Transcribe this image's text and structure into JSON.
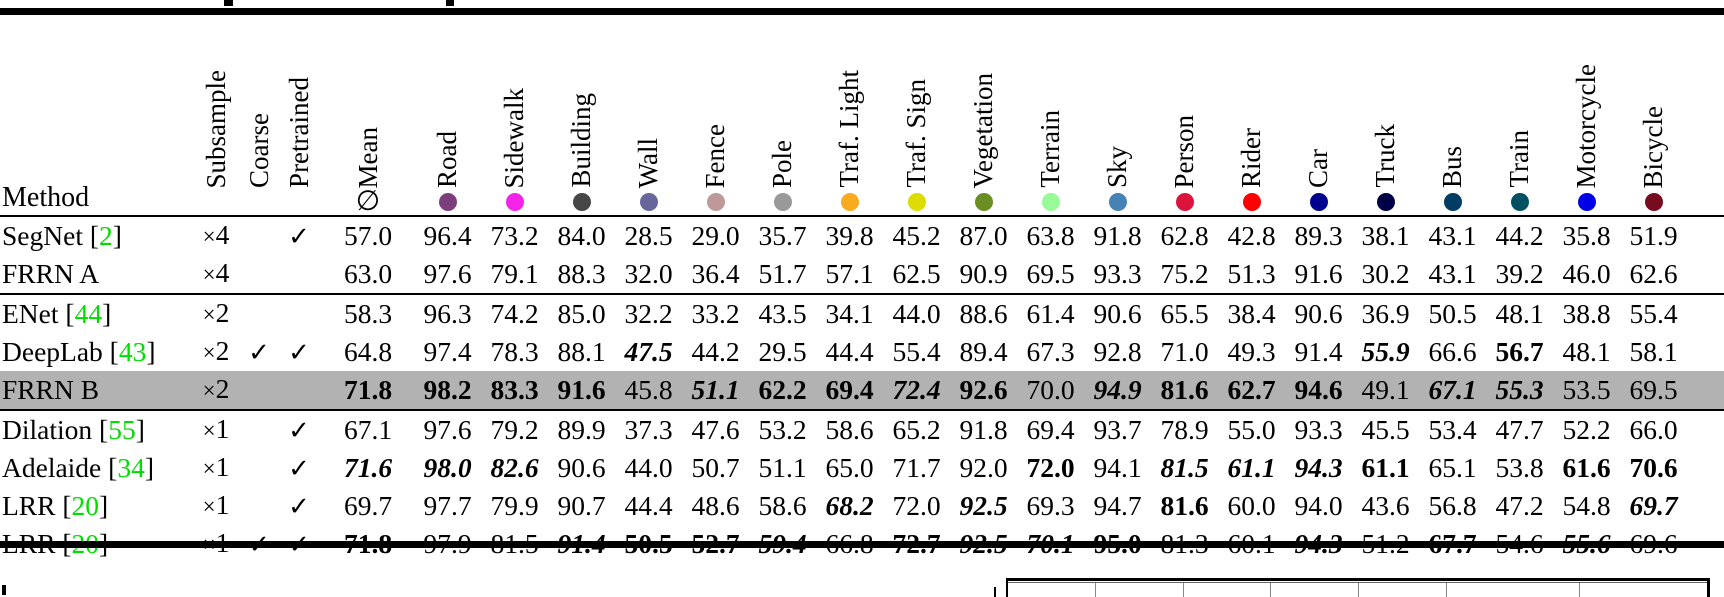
{
  "table": {
    "method_header": "Method",
    "check_glyph": "✓",
    "cite_color": "#00dd00",
    "highlight_color": "#b2b2b2",
    "meta_columns": [
      {
        "label": "Subsample"
      },
      {
        "label": "Coarse"
      },
      {
        "label": "Pretrained"
      }
    ],
    "mean_column": {
      "label": "Mean",
      "symbol": "∅"
    },
    "class_columns": [
      {
        "label": "Road",
        "color": "#7c3f7c"
      },
      {
        "label": "Sidewalk",
        "color": "#f423e8"
      },
      {
        "label": "Building",
        "color": "#464646"
      },
      {
        "label": "Wall",
        "color": "#66669c"
      },
      {
        "label": "Fence",
        "color": "#be9999"
      },
      {
        "label": "Pole",
        "color": "#999999"
      },
      {
        "label": "Traf. Light",
        "color": "#faaa1e"
      },
      {
        "label": "Traf. Sign",
        "color": "#dcdc00"
      },
      {
        "label": "Vegetation",
        "color": "#6b8e23"
      },
      {
        "label": "Terrain",
        "color": "#98fb98"
      },
      {
        "label": "Sky",
        "color": "#4682b4"
      },
      {
        "label": "Person",
        "color": "#dc143c"
      },
      {
        "label": "Rider",
        "color": "#ff0000"
      },
      {
        "label": "Car",
        "color": "#00008e"
      },
      {
        "label": "Truck",
        "color": "#000046"
      },
      {
        "label": "Bus",
        "color": "#003c64"
      },
      {
        "label": "Train",
        "color": "#005064"
      },
      {
        "label": "Motorcycle",
        "color": "#0000e6"
      },
      {
        "label": "Bicycle",
        "color": "#770b20"
      }
    ],
    "rows": [
      {
        "method": "SegNet",
        "cite": "2",
        "subsample": "×4",
        "coarse": false,
        "pretrained": true,
        "highlight": false,
        "group_end": false,
        "mean": [
          "57.0",
          ""
        ],
        "values": [
          [
            "96.4",
            ""
          ],
          [
            "73.2",
            ""
          ],
          [
            "84.0",
            ""
          ],
          [
            "28.5",
            ""
          ],
          [
            "29.0",
            ""
          ],
          [
            "35.7",
            ""
          ],
          [
            "39.8",
            ""
          ],
          [
            "45.2",
            ""
          ],
          [
            "87.0",
            ""
          ],
          [
            "63.8",
            ""
          ],
          [
            "91.8",
            ""
          ],
          [
            "62.8",
            ""
          ],
          [
            "42.8",
            ""
          ],
          [
            "89.3",
            ""
          ],
          [
            "38.1",
            ""
          ],
          [
            "43.1",
            ""
          ],
          [
            "44.2",
            ""
          ],
          [
            "35.8",
            ""
          ],
          [
            "51.9",
            ""
          ]
        ]
      },
      {
        "method": "FRRN A",
        "cite": "",
        "subsample": "×4",
        "coarse": false,
        "pretrained": false,
        "highlight": false,
        "group_end": true,
        "mean": [
          "63.0",
          ""
        ],
        "values": [
          [
            "97.6",
            ""
          ],
          [
            "79.1",
            ""
          ],
          [
            "88.3",
            ""
          ],
          [
            "32.0",
            ""
          ],
          [
            "36.4",
            ""
          ],
          [
            "51.7",
            ""
          ],
          [
            "57.1",
            ""
          ],
          [
            "62.5",
            ""
          ],
          [
            "90.9",
            ""
          ],
          [
            "69.5",
            ""
          ],
          [
            "93.3",
            ""
          ],
          [
            "75.2",
            ""
          ],
          [
            "51.3",
            ""
          ],
          [
            "91.6",
            ""
          ],
          [
            "30.2",
            ""
          ],
          [
            "43.1",
            ""
          ],
          [
            "39.2",
            ""
          ],
          [
            "46.0",
            ""
          ],
          [
            "62.6",
            ""
          ]
        ]
      },
      {
        "method": "ENet",
        "cite": "44",
        "subsample": "×2",
        "coarse": false,
        "pretrained": false,
        "highlight": false,
        "group_end": false,
        "mean": [
          "58.3",
          ""
        ],
        "values": [
          [
            "96.3",
            ""
          ],
          [
            "74.2",
            ""
          ],
          [
            "85.0",
            ""
          ],
          [
            "32.2",
            ""
          ],
          [
            "33.2",
            ""
          ],
          [
            "43.5",
            ""
          ],
          [
            "34.1",
            ""
          ],
          [
            "44.0",
            ""
          ],
          [
            "88.6",
            ""
          ],
          [
            "61.4",
            ""
          ],
          [
            "90.6",
            ""
          ],
          [
            "65.5",
            ""
          ],
          [
            "38.4",
            ""
          ],
          [
            "90.6",
            ""
          ],
          [
            "36.9",
            ""
          ],
          [
            "50.5",
            ""
          ],
          [
            "48.1",
            ""
          ],
          [
            "38.8",
            ""
          ],
          [
            "55.4",
            ""
          ]
        ]
      },
      {
        "method": "DeepLab",
        "cite": "43",
        "subsample": "×2",
        "coarse": true,
        "pretrained": true,
        "highlight": false,
        "group_end": false,
        "mean": [
          "64.8",
          ""
        ],
        "values": [
          [
            "97.4",
            ""
          ],
          [
            "78.3",
            ""
          ],
          [
            "88.1",
            ""
          ],
          [
            "47.5",
            "bi"
          ],
          [
            "44.2",
            ""
          ],
          [
            "29.5",
            ""
          ],
          [
            "44.4",
            ""
          ],
          [
            "55.4",
            ""
          ],
          [
            "89.4",
            ""
          ],
          [
            "67.3",
            ""
          ],
          [
            "92.8",
            ""
          ],
          [
            "71.0",
            ""
          ],
          [
            "49.3",
            ""
          ],
          [
            "91.4",
            ""
          ],
          [
            "55.9",
            "bi"
          ],
          [
            "66.6",
            ""
          ],
          [
            "56.7",
            "b"
          ],
          [
            "48.1",
            ""
          ],
          [
            "58.1",
            ""
          ]
        ]
      },
      {
        "method": "FRRN B",
        "cite": "",
        "subsample": "×2",
        "coarse": false,
        "pretrained": false,
        "highlight": true,
        "group_end": true,
        "mean": [
          "71.8",
          "b"
        ],
        "values": [
          [
            "98.2",
            "b"
          ],
          [
            "83.3",
            "b"
          ],
          [
            "91.6",
            "b"
          ],
          [
            "45.8",
            ""
          ],
          [
            "51.1",
            "bi"
          ],
          [
            "62.2",
            "b"
          ],
          [
            "69.4",
            "b"
          ],
          [
            "72.4",
            "bi"
          ],
          [
            "92.6",
            "b"
          ],
          [
            "70.0",
            ""
          ],
          [
            "94.9",
            "bi"
          ],
          [
            "81.6",
            "b"
          ],
          [
            "62.7",
            "b"
          ],
          [
            "94.6",
            "b"
          ],
          [
            "49.1",
            ""
          ],
          [
            "67.1",
            "bi"
          ],
          [
            "55.3",
            "bi"
          ],
          [
            "53.5",
            ""
          ],
          [
            "69.5",
            ""
          ]
        ]
      },
      {
        "method": "Dilation",
        "cite": "55",
        "subsample": "×1",
        "coarse": false,
        "pretrained": true,
        "highlight": false,
        "group_end": false,
        "mean": [
          "67.1",
          ""
        ],
        "values": [
          [
            "97.6",
            ""
          ],
          [
            "79.2",
            ""
          ],
          [
            "89.9",
            ""
          ],
          [
            "37.3",
            ""
          ],
          [
            "47.6",
            ""
          ],
          [
            "53.2",
            ""
          ],
          [
            "58.6",
            ""
          ],
          [
            "65.2",
            ""
          ],
          [
            "91.8",
            ""
          ],
          [
            "69.4",
            ""
          ],
          [
            "93.7",
            ""
          ],
          [
            "78.9",
            ""
          ],
          [
            "55.0",
            ""
          ],
          [
            "93.3",
            ""
          ],
          [
            "45.5",
            ""
          ],
          [
            "53.4",
            ""
          ],
          [
            "47.7",
            ""
          ],
          [
            "52.2",
            ""
          ],
          [
            "66.0",
            ""
          ]
        ]
      },
      {
        "method": "Adelaide",
        "cite": "34",
        "subsample": "×1",
        "coarse": false,
        "pretrained": true,
        "highlight": false,
        "group_end": false,
        "mean": [
          "71.6",
          "bi"
        ],
        "values": [
          [
            "98.0",
            "bi"
          ],
          [
            "82.6",
            "bi"
          ],
          [
            "90.6",
            ""
          ],
          [
            "44.0",
            ""
          ],
          [
            "50.7",
            ""
          ],
          [
            "51.1",
            ""
          ],
          [
            "65.0",
            ""
          ],
          [
            "71.7",
            ""
          ],
          [
            "92.0",
            ""
          ],
          [
            "72.0",
            "b"
          ],
          [
            "94.1",
            ""
          ],
          [
            "81.5",
            "bi"
          ],
          [
            "61.1",
            "bi"
          ],
          [
            "94.3",
            "bi"
          ],
          [
            "61.1",
            "b"
          ],
          [
            "65.1",
            ""
          ],
          [
            "53.8",
            ""
          ],
          [
            "61.6",
            "b"
          ],
          [
            "70.6",
            "b"
          ]
        ]
      },
      {
        "method": "LRR",
        "cite": "20",
        "subsample": "×1",
        "coarse": false,
        "pretrained": true,
        "highlight": false,
        "group_end": false,
        "mean": [
          "69.7",
          ""
        ],
        "values": [
          [
            "97.7",
            ""
          ],
          [
            "79.9",
            ""
          ],
          [
            "90.7",
            ""
          ],
          [
            "44.4",
            ""
          ],
          [
            "48.6",
            ""
          ],
          [
            "58.6",
            ""
          ],
          [
            "68.2",
            "bi"
          ],
          [
            "72.0",
            ""
          ],
          [
            "92.5",
            "bi"
          ],
          [
            "69.3",
            ""
          ],
          [
            "94.7",
            ""
          ],
          [
            "81.6",
            "b"
          ],
          [
            "60.0",
            ""
          ],
          [
            "94.0",
            ""
          ],
          [
            "43.6",
            ""
          ],
          [
            "56.8",
            ""
          ],
          [
            "47.2",
            ""
          ],
          [
            "54.8",
            ""
          ],
          [
            "69.7",
            "bi"
          ]
        ]
      },
      {
        "method": "LRR",
        "cite": "20",
        "subsample": "×1",
        "coarse": true,
        "pretrained": true,
        "highlight": false,
        "group_end": false,
        "mean": [
          "71.8",
          "b"
        ],
        "values": [
          [
            "97.9",
            ""
          ],
          [
            "81.5",
            ""
          ],
          [
            "91.4",
            "bi"
          ],
          [
            "50.5",
            "b"
          ],
          [
            "52.7",
            "b"
          ],
          [
            "59.4",
            "bi"
          ],
          [
            "66.8",
            ""
          ],
          [
            "72.7",
            "b"
          ],
          [
            "92.5",
            "bi"
          ],
          [
            "70.1",
            "bi"
          ],
          [
            "95.0",
            "b"
          ],
          [
            "81.3",
            ""
          ],
          [
            "60.1",
            ""
          ],
          [
            "94.3",
            "bi"
          ],
          [
            "51.2",
            ""
          ],
          [
            "67.7",
            "b"
          ],
          [
            "54.6",
            ""
          ],
          [
            "55.6",
            "bi"
          ],
          [
            "69.6",
            ""
          ]
        ]
      }
    ]
  }
}
